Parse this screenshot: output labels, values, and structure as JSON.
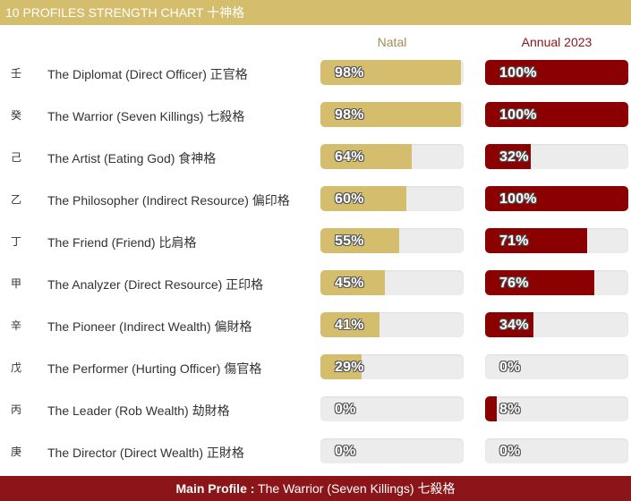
{
  "header": {
    "title": "10 PROFILES STRENGTH CHART 十神格"
  },
  "columns": {
    "natal": "Natal",
    "annual": "Annual 2023"
  },
  "chart_data": {
    "type": "bar",
    "title": "10 PROFILES STRENGTH CHART 十神格",
    "categories": [
      "The Diplomat (Direct Officer) 正官格",
      "The Warrior (Seven Killings) 七殺格",
      "The Artist (Eating God) 食神格",
      "The Philosopher (Indirect Resource) 偏印格",
      "The Friend (Friend) 比肩格",
      "The Analyzer (Direct Resource) 正印格",
      "The Pioneer (Indirect Wealth) 偏財格",
      "The Performer (Hurting Officer) 傷官格",
      "The Leader (Rob Wealth) 劫財格",
      "The Director (Direct Wealth) 正財格"
    ],
    "stems": [
      "壬",
      "癸",
      "己",
      "乙",
      "丁",
      "甲",
      "辛",
      "戊",
      "丙",
      "庚"
    ],
    "series": [
      {
        "name": "Natal",
        "color": "#d4bd6c",
        "values": [
          98,
          98,
          64,
          60,
          55,
          45,
          41,
          29,
          0,
          0
        ]
      },
      {
        "name": "Annual 2023",
        "color": "#8b0000",
        "values": [
          100,
          100,
          32,
          100,
          71,
          76,
          34,
          0,
          8,
          0
        ]
      }
    ],
    "ylim": [
      0,
      100
    ],
    "unit": "%"
  },
  "footer": {
    "label": "Main Profile :",
    "value": " The Warrior (Seven Killings) 七殺格"
  }
}
